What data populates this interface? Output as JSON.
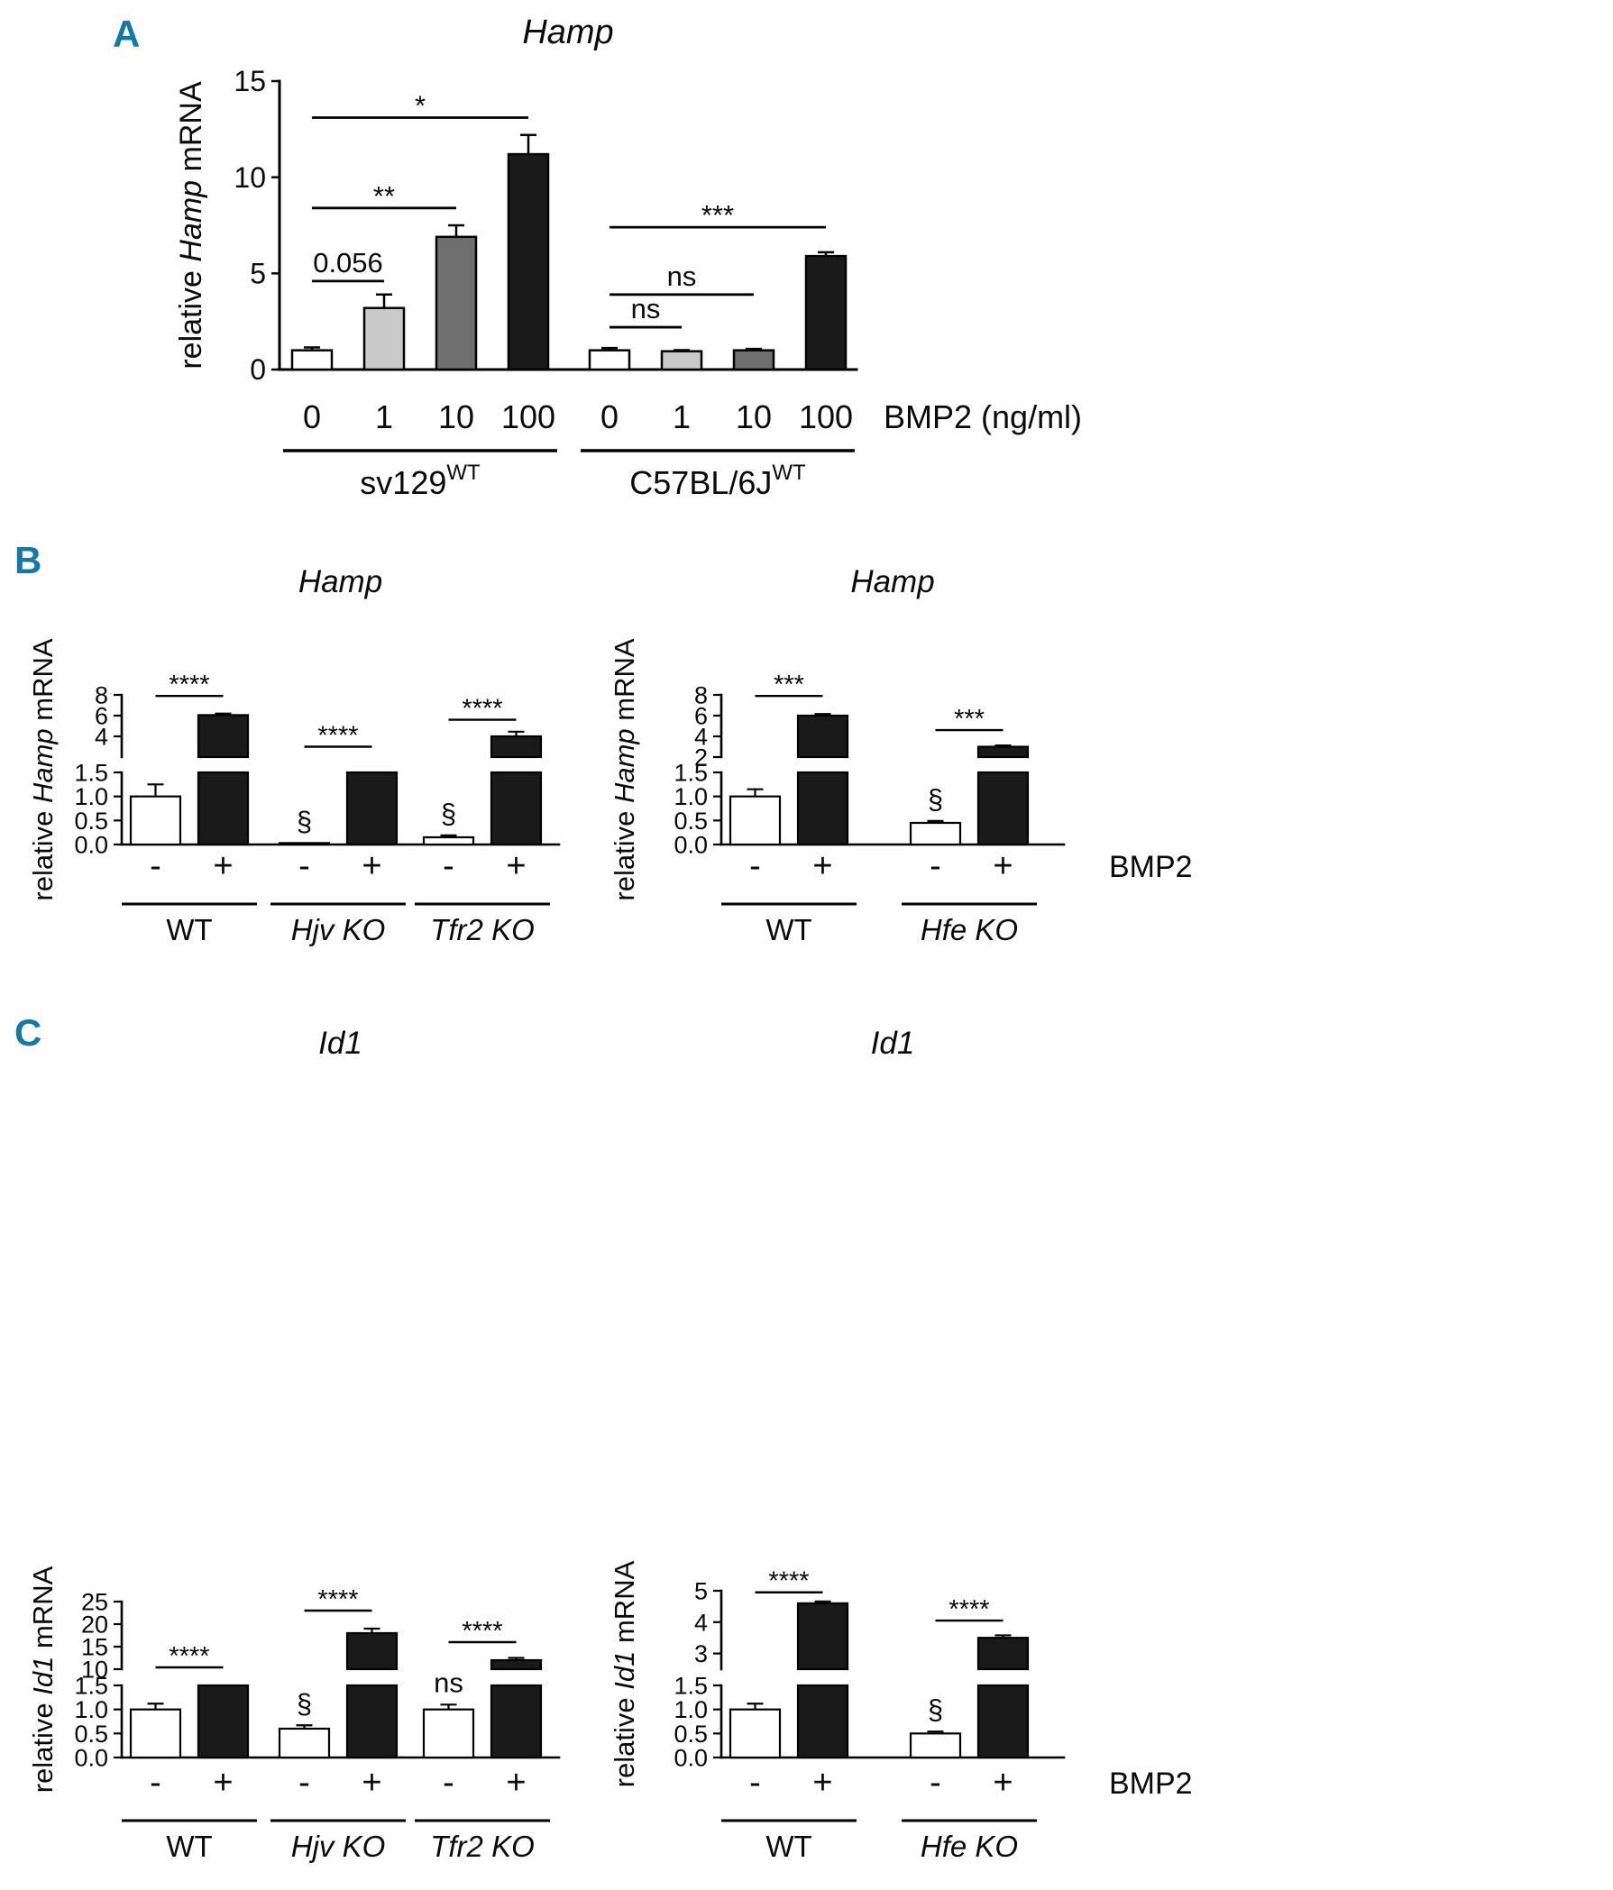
{
  "figure": {
    "panels": {
      "a": "A",
      "b": "B",
      "c": "C"
    }
  },
  "colors": {
    "panel_letter": "#1578a6",
    "axis": "#000000",
    "bar_fills": {
      "white": "#ffffff",
      "lightgray": "#c9c9c9",
      "gray": "#6f6f6f",
      "black": "#1a1a1a"
    }
  },
  "chart_data": [
    {
      "id": "A",
      "type": "bar",
      "title": "Hamp",
      "ylabel": {
        "pre": "relative ",
        "italic": "Hamp",
        "post": " mRNA"
      },
      "x_axis_label": "BMP2 (ng/ml)",
      "axis": {
        "kind": "simple",
        "max": 15,
        "ticks": [
          [
            0,
            "0"
          ],
          [
            5,
            "5"
          ],
          [
            10,
            "10"
          ],
          [
            15,
            "15"
          ]
        ]
      },
      "groups": [
        {
          "label": "sv129",
          "sup": "WT",
          "italic": false,
          "bars": [
            {
              "tick": "0",
              "value": 1.0,
              "error": 0.15,
              "fill": "white",
              "annotation": null
            },
            {
              "tick": "1",
              "value": 3.2,
              "error": 0.7,
              "fill": "lightgray",
              "annotation": null
            },
            {
              "tick": "10",
              "value": 6.9,
              "error": 0.6,
              "fill": "gray",
              "annotation": null
            },
            {
              "tick": "100",
              "value": 11.2,
              "error": 1.0,
              "fill": "black",
              "annotation": null
            }
          ]
        },
        {
          "label": "C57BL/6J",
          "sup": "WT",
          "italic": false,
          "bars": [
            {
              "tick": "0",
              "value": 1.0,
              "error": 0.12,
              "fill": "white",
              "annotation": null
            },
            {
              "tick": "1",
              "value": 0.95,
              "error": 0.06,
              "fill": "lightgray",
              "annotation": null
            },
            {
              "tick": "10",
              "value": 1.0,
              "error": 0.07,
              "fill": "gray",
              "annotation": null
            },
            {
              "tick": "100",
              "value": 5.9,
              "error": 0.2,
              "fill": "black",
              "annotation": null
            }
          ]
        }
      ],
      "brackets": [
        {
          "from": 0,
          "to": 1,
          "y": 4.6,
          "label": "0.056"
        },
        {
          "from": 0,
          "to": 2,
          "y": 8.4,
          "label": "**"
        },
        {
          "from": 0,
          "to": 3,
          "y": 13.1,
          "label": "*"
        },
        {
          "from": 4,
          "to": 5,
          "y": 2.2,
          "label": "ns"
        },
        {
          "from": 4,
          "to": 6,
          "y": 3.9,
          "label": "ns"
        },
        {
          "from": 4,
          "to": 7,
          "y": 7.4,
          "label": "***"
        }
      ]
    },
    {
      "id": "B_left",
      "type": "bar",
      "title": "Hamp",
      "ylabel": {
        "pre": "relative ",
        "italic": "Hamp",
        "post": " mRNA"
      },
      "x_axis_label": null,
      "axis": {
        "kind": "broken",
        "low_max": 1.5,
        "low_ticks": [
          [
            0,
            "0.0"
          ],
          [
            0.5,
            "0.5"
          ],
          [
            1,
            "1.0"
          ],
          [
            1.5,
            "1.5"
          ]
        ],
        "up_start": 2,
        "up_max": 8,
        "up_ticks": [
          [
            4,
            "4"
          ],
          [
            6,
            "6"
          ],
          [
            8,
            "8"
          ]
        ]
      },
      "groups": [
        {
          "label": "WT",
          "italic": false,
          "bars": [
            {
              "tick": "-",
              "value": 1.0,
              "error": 0.25,
              "fill": "white",
              "annotation": null
            },
            {
              "tick": "+",
              "value": 6.05,
              "error": 0.15,
              "fill": "black",
              "annotation": null
            }
          ]
        },
        {
          "label": "Hjv KO",
          "italic": true,
          "bars": [
            {
              "tick": "-",
              "value": 0.03,
              "error": null,
              "fill": "white",
              "annotation": "§"
            },
            {
              "tick": "+",
              "value": 1.9,
              "error": null,
              "fill": "black",
              "annotation": null
            }
          ]
        },
        {
          "label": "Tfr2 KO",
          "italic": true,
          "bars": [
            {
              "tick": "-",
              "value": 0.15,
              "error": 0.04,
              "fill": "white",
              "annotation": "§"
            },
            {
              "tick": "+",
              "value": 4.0,
              "error": 0.45,
              "fill": "black",
              "annotation": null
            }
          ]
        }
      ],
      "brackets": [
        {
          "from": 0,
          "to": 1,
          "y": 7.9,
          "label": "****"
        },
        {
          "from": 2,
          "to": 3,
          "y": 3.0,
          "label": "****"
        },
        {
          "from": 4,
          "to": 5,
          "y": 5.6,
          "label": "****"
        }
      ]
    },
    {
      "id": "B_right",
      "type": "bar",
      "title": "Hamp",
      "ylabel": {
        "pre": "relative ",
        "italic": "Hamp",
        "post": " mRNA"
      },
      "x_axis_label": "BMP2",
      "axis": {
        "kind": "broken",
        "low_max": 1.5,
        "low_ticks": [
          [
            0,
            "0.0"
          ],
          [
            0.5,
            "0.5"
          ],
          [
            1,
            "1.0"
          ],
          [
            1.5,
            "1.5"
          ]
        ],
        "up_start": 2,
        "up_max": 8,
        "up_ticks": [
          [
            2,
            "2"
          ],
          [
            4,
            "4"
          ],
          [
            6,
            "6"
          ],
          [
            8,
            "8"
          ]
        ]
      },
      "groups": [
        {
          "label": "WT",
          "italic": false,
          "bars": [
            {
              "tick": "-",
              "value": 1.0,
              "error": 0.15,
              "fill": "white",
              "annotation": null
            },
            {
              "tick": "+",
              "value": 6.0,
              "error": 0.15,
              "fill": "black",
              "annotation": null
            }
          ]
        },
        {
          "label": "Hfe KO",
          "italic": true,
          "bars": [
            {
              "tick": "-",
              "value": 0.45,
              "error": 0.04,
              "fill": "white",
              "annotation": "§"
            },
            {
              "tick": "+",
              "value": 3.0,
              "error": 0.12,
              "fill": "black",
              "annotation": null
            }
          ]
        }
      ],
      "brackets": [
        {
          "from": 0,
          "to": 1,
          "y": 7.9,
          "label": "***"
        },
        {
          "from": 2,
          "to": 3,
          "y": 4.6,
          "label": "***"
        }
      ]
    },
    {
      "id": "C_left",
      "type": "bar",
      "title": "Id1",
      "ylabel": {
        "pre": "relative ",
        "italic": "Id1",
        "post": " mRNA"
      },
      "x_axis_label": null,
      "axis": {
        "kind": "broken",
        "low_max": 1.5,
        "low_ticks": [
          [
            0,
            "0.0"
          ],
          [
            0.5,
            "0.5"
          ],
          [
            1,
            "1.0"
          ],
          [
            1.5,
            "1.5"
          ]
        ],
        "up_start": 10,
        "up_max": 25,
        "up_ticks": [
          [
            10,
            "10"
          ],
          [
            15,
            "15"
          ],
          [
            20,
            "20"
          ],
          [
            25,
            "25"
          ]
        ]
      },
      "groups": [
        {
          "label": "WT",
          "italic": false,
          "bars": [
            {
              "tick": "-",
              "value": 1.0,
              "error": 0.12,
              "fill": "white",
              "annotation": null
            },
            {
              "tick": "+",
              "value": 6.0,
              "error": null,
              "fill": "black",
              "annotation": null
            }
          ]
        },
        {
          "label": "Hjv KO",
          "italic": true,
          "bars": [
            {
              "tick": "-",
              "value": 0.6,
              "error": 0.07,
              "fill": "white",
              "annotation": "§"
            },
            {
              "tick": "+",
              "value": 18.0,
              "error": 1.0,
              "fill": "black",
              "annotation": null
            }
          ]
        },
        {
          "label": "Tfr2 KO",
          "italic": true,
          "bars": [
            {
              "tick": "-",
              "value": 1.0,
              "error": 0.1,
              "fill": "white",
              "annotation": "ns"
            },
            {
              "tick": "+",
              "value": 12.0,
              "error": 0.5,
              "fill": "black",
              "annotation": null
            }
          ]
        }
      ],
      "brackets": [
        {
          "from": 0,
          "to": 1,
          "y": 10.4,
          "label": "****"
        },
        {
          "from": 2,
          "to": 3,
          "y": 23.0,
          "label": "****"
        },
        {
          "from": 4,
          "to": 5,
          "y": 16.0,
          "label": "****"
        }
      ]
    },
    {
      "id": "C_right",
      "type": "bar",
      "title": "Id1",
      "ylabel": {
        "pre": "relative ",
        "italic": "Id1",
        "post": " mRNA"
      },
      "x_axis_label": "BMP2",
      "axis": {
        "kind": "broken",
        "low_max": 1.5,
        "low_ticks": [
          [
            0,
            "0.0"
          ],
          [
            0.5,
            "0.5"
          ],
          [
            1,
            "1.0"
          ],
          [
            1.5,
            "1.5"
          ]
        ],
        "up_start": 2.5,
        "up_max": 5,
        "up_ticks": [
          [
            3,
            "3"
          ],
          [
            4,
            "4"
          ],
          [
            5,
            "5"
          ]
        ]
      },
      "groups": [
        {
          "label": "WT",
          "italic": false,
          "bars": [
            {
              "tick": "-",
              "value": 1.0,
              "error": 0.12,
              "fill": "white",
              "annotation": null
            },
            {
              "tick": "+",
              "value": 4.6,
              "error": 0.06,
              "fill": "black",
              "annotation": null
            }
          ]
        },
        {
          "label": "Hfe KO",
          "italic": true,
          "bars": [
            {
              "tick": "-",
              "value": 0.5,
              "error": 0.04,
              "fill": "white",
              "annotation": "§"
            },
            {
              "tick": "+",
              "value": 3.5,
              "error": 0.08,
              "fill": "black",
              "annotation": null
            }
          ]
        }
      ],
      "brackets": [
        {
          "from": 0,
          "to": 1,
          "y": 4.95,
          "label": "****"
        },
        {
          "from": 2,
          "to": 3,
          "y": 4.05,
          "label": "****"
        }
      ]
    }
  ]
}
